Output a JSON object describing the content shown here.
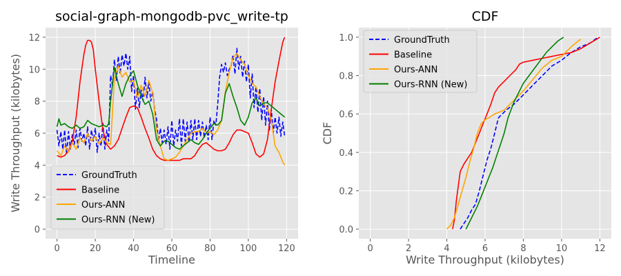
{
  "chart_data": [
    {
      "type": "line",
      "title": "social-graph-mongodb-pvc_write-tp",
      "xlabel": "Timeline",
      "ylabel": "Write Throughput (kilobytes)",
      "xlim": [
        -6,
        126
      ],
      "ylim": [
        -0.6,
        12.6
      ],
      "xticks": [
        0,
        20,
        40,
        60,
        80,
        100,
        120
      ],
      "yticks": [
        0,
        2,
        4,
        6,
        8,
        10,
        12
      ],
      "grid": true,
      "legend_position": "lower-left",
      "series": [
        {
          "name": "GroundTruth",
          "color": "#0000ff",
          "style": "dashed",
          "x": [
            0,
            1,
            2,
            3,
            4,
            5,
            6,
            7,
            8,
            9,
            10,
            11,
            12,
            13,
            14,
            15,
            16,
            17,
            18,
            19,
            20,
            21,
            22,
            23,
            24,
            25,
            26,
            27,
            28,
            29,
            30,
            31,
            32,
            33,
            34,
            35,
            36,
            37,
            38,
            39,
            40,
            41,
            42,
            43,
            44,
            45,
            46,
            47,
            48,
            49,
            50,
            51,
            52,
            53,
            54,
            55,
            56,
            57,
            58,
            59,
            60,
            61,
            62,
            63,
            64,
            65,
            66,
            67,
            68,
            69,
            70,
            71,
            72,
            73,
            74,
            75,
            76,
            77,
            78,
            79,
            80,
            81,
            82,
            83,
            84,
            85,
            86,
            87,
            88,
            89,
            90,
            91,
            92,
            93,
            94,
            95,
            96,
            97,
            98,
            99,
            100,
            101,
            102,
            103,
            104,
            105,
            106,
            107,
            108,
            109,
            110,
            111,
            112,
            113,
            114,
            115,
            116,
            117,
            118,
            119
          ],
          "y": [
            6.2,
            5.2,
            6.1,
            5.0,
            6.2,
            4.7,
            6.1,
            5.0,
            5.9,
            5.3,
            6.2,
            5.1,
            6.3,
            5.5,
            6.0,
            5.2,
            6.4,
            5.0,
            6.2,
            5.5,
            6.3,
            4.8,
            6.0,
            5.2,
            6.6,
            5.0,
            6.2,
            5.5,
            9.6,
            9.0,
            10.6,
            9.3,
            10.8,
            9.7,
            10.9,
            10.2,
            11.0,
            10.0,
            10.8,
            8.6,
            9.6,
            7.5,
            8.8,
            7.6,
            8.7,
            8.0,
            9.5,
            8.2,
            9.2,
            8.0,
            8.6,
            7.5,
            6.9,
            5.5,
            6.3,
            5.4,
            6.2,
            5.3,
            6.4,
            5.0,
            6.8,
            5.2,
            6.2,
            5.5,
            6.9,
            5.2,
            6.9,
            5.5,
            6.7,
            5.4,
            6.8,
            5.6,
            6.9,
            5.6,
            6.8,
            5.8,
            6.7,
            5.7,
            6.5,
            5.6,
            7.0,
            5.6,
            6.8,
            6.5,
            7.8,
            9.5,
            10.3,
            9.8,
            10.4,
            9.6,
            10.0,
            10.2,
            10.9,
            9.7,
            11.3,
            10.0,
            10.8,
            9.5,
            10.5,
            9.2,
            10.3,
            8.2,
            9.7,
            7.6,
            8.9,
            7.3,
            8.8,
            6.8,
            8.3,
            6.5,
            8.0,
            6.2,
            7.5,
            6.0,
            7.0,
            6.0,
            7.0,
            5.8,
            6.7,
            5.8
          ]
        },
        {
          "name": "Baseline",
          "color": "#ff0000",
          "style": "solid",
          "x": [
            0,
            2,
            4,
            6,
            8,
            10,
            12,
            14,
            15,
            16,
            17,
            18,
            19,
            20,
            22,
            24,
            26,
            28,
            30,
            32,
            34,
            36,
            38,
            40,
            42,
            44,
            46,
            48,
            50,
            52,
            54,
            56,
            58,
            60,
            62,
            64,
            66,
            68,
            70,
            72,
            74,
            76,
            78,
            80,
            82,
            84,
            86,
            88,
            90,
            92,
            94,
            96,
            98,
            100,
            102,
            104,
            106,
            108,
            110,
            112,
            114,
            116,
            118,
            119
          ],
          "y": [
            4.6,
            4.5,
            4.6,
            4.9,
            5.5,
            7.0,
            9.2,
            10.9,
            11.5,
            11.8,
            11.8,
            11.7,
            11.2,
            10.0,
            8.0,
            6.2,
            5.3,
            5.0,
            5.2,
            5.6,
            6.3,
            7.0,
            7.6,
            7.7,
            7.6,
            7.0,
            6.3,
            5.7,
            5.0,
            4.6,
            4.4,
            4.3,
            4.3,
            4.3,
            4.3,
            4.3,
            4.4,
            4.4,
            4.4,
            4.6,
            5.0,
            5.3,
            5.4,
            5.2,
            5.0,
            4.9,
            4.9,
            5.0,
            5.4,
            5.9,
            6.2,
            6.2,
            6.1,
            6.0,
            5.4,
            4.7,
            4.5,
            4.7,
            5.6,
            7.5,
            9.2,
            10.5,
            11.7,
            12.0
          ]
        },
        {
          "name": "Ours-ANN",
          "color": "#ffa500",
          "style": "solid",
          "x": [
            0,
            2,
            4,
            6,
            8,
            10,
            12,
            14,
            16,
            18,
            20,
            22,
            24,
            26,
            28,
            30,
            32,
            34,
            36,
            38,
            40,
            42,
            44,
            46,
            48,
            50,
            52,
            54,
            56,
            58,
            60,
            62,
            64,
            66,
            68,
            70,
            72,
            74,
            76,
            78,
            80,
            82,
            84,
            86,
            88,
            90,
            92,
            94,
            96,
            98,
            100,
            102,
            104,
            106,
            108,
            110,
            112,
            114,
            116,
            118,
            119
          ],
          "y": [
            4.9,
            4.6,
            5.2,
            4.8,
            5.4,
            5.0,
            5.7,
            5.4,
            6.0,
            5.5,
            5.8,
            5.3,
            5.7,
            5.4,
            5.3,
            9.4,
            10.2,
            9.5,
            9.8,
            9.2,
            9.3,
            8.2,
            9.0,
            8.3,
            9.3,
            8.5,
            6.2,
            5.2,
            4.4,
            4.3,
            4.4,
            4.5,
            4.8,
            5.2,
            5.6,
            6.0,
            6.1,
            6.1,
            6.3,
            6.0,
            6.1,
            5.9,
            6.2,
            6.8,
            8.6,
            9.8,
            10.7,
            11.0,
            10.6,
            10.3,
            9.6,
            9.1,
            8.9,
            8.3,
            7.8,
            7.6,
            6.8,
            5.2,
            4.8,
            4.2,
            4.0
          ]
        },
        {
          "name": "Ours-RNN (New)",
          "color": "#008000",
          "style": "solid",
          "x": [
            0,
            1,
            2,
            4,
            6,
            8,
            10,
            12,
            14,
            16,
            18,
            20,
            22,
            24,
            26,
            27,
            28,
            30,
            32,
            34,
            36,
            38,
            40,
            42,
            44,
            46,
            48,
            50,
            52,
            54,
            56,
            58,
            60,
            62,
            64,
            66,
            68,
            70,
            72,
            74,
            76,
            78,
            80,
            82,
            84,
            86,
            88,
            90,
            92,
            94,
            96,
            98,
            100,
            102,
            104,
            106,
            108,
            110,
            112,
            114,
            116,
            118,
            119
          ],
          "y": [
            6.4,
            6.9,
            6.5,
            6.6,
            6.4,
            6.3,
            6.5,
            6.3,
            6.4,
            6.8,
            6.6,
            6.5,
            6.4,
            6.5,
            6.4,
            6.6,
            8.0,
            10.1,
            9.1,
            8.3,
            9.1,
            9.6,
            9.9,
            9.0,
            8.3,
            7.8,
            8.0,
            7.2,
            5.6,
            5.2,
            5.5,
            5.5,
            5.3,
            5.1,
            5.0,
            5.2,
            5.4,
            5.6,
            5.4,
            5.3,
            5.6,
            6.0,
            6.3,
            6.6,
            6.5,
            6.8,
            8.5,
            9.1,
            8.3,
            7.6,
            6.8,
            6.5,
            7.0,
            7.9,
            8.2,
            7.7,
            7.9,
            7.9,
            7.7,
            7.5,
            7.3,
            7.1,
            7.0
          ]
        }
      ]
    },
    {
      "type": "line",
      "title": "CDF",
      "xlabel": "Write Throughput (kilobytes)",
      "ylabel": "CDF",
      "xlim": [
        -0.6,
        12.6
      ],
      "ylim": [
        -0.05,
        1.05
      ],
      "xticks": [
        0,
        2,
        4,
        6,
        8,
        10,
        12
      ],
      "yticks": [
        0.0,
        0.2,
        0.4,
        0.6,
        0.8,
        1.0
      ],
      "ytick_labels": [
        "0.0",
        "0.2",
        "0.4",
        "0.6",
        "0.8",
        "1.0"
      ],
      "grid": true,
      "legend_position": "upper-left",
      "series": [
        {
          "name": "GroundTruth",
          "color": "#0000ff",
          "style": "dashed",
          "x": [
            4.7,
            4.9,
            5.1,
            5.3,
            5.5,
            5.7,
            5.9,
            6.1,
            6.3,
            6.5,
            6.7,
            6.9,
            7.1,
            7.5,
            8.0,
            8.5,
            9.0,
            9.5,
            10.0,
            10.5,
            11.0,
            11.5,
            11.9
          ],
          "y": [
            0.0,
            0.03,
            0.06,
            0.1,
            0.13,
            0.2,
            0.28,
            0.36,
            0.42,
            0.5,
            0.58,
            0.6,
            0.62,
            0.65,
            0.7,
            0.75,
            0.8,
            0.85,
            0.88,
            0.92,
            0.95,
            0.97,
            1.0
          ]
        },
        {
          "name": "Baseline",
          "color": "#ff0000",
          "style": "solid",
          "x": [
            4.3,
            4.4,
            4.5,
            4.7,
            4.9,
            5.1,
            5.3,
            5.5,
            5.7,
            5.9,
            6.1,
            6.3,
            6.5,
            6.7,
            7.0,
            7.3,
            7.6,
            7.8,
            8.0,
            8.5,
            9.0,
            9.5,
            10.0,
            10.5,
            11.0,
            11.5,
            12.0
          ],
          "y": [
            0.0,
            0.05,
            0.15,
            0.3,
            0.34,
            0.37,
            0.4,
            0.45,
            0.5,
            0.55,
            0.6,
            0.65,
            0.71,
            0.74,
            0.77,
            0.8,
            0.83,
            0.86,
            0.87,
            0.88,
            0.89,
            0.9,
            0.91,
            0.92,
            0.94,
            0.97,
            1.0
          ]
        },
        {
          "name": "Ours-ANN",
          "color": "#ffa500",
          "style": "solid",
          "x": [
            4.0,
            4.2,
            4.4,
            4.6,
            4.8,
            5.0,
            5.2,
            5.4,
            5.6,
            5.8,
            6.0,
            6.2,
            6.5,
            7.0,
            7.5,
            8.0,
            8.5,
            9.0,
            9.5,
            10.0,
            10.5,
            11.0
          ],
          "y": [
            0.0,
            0.02,
            0.06,
            0.13,
            0.2,
            0.27,
            0.35,
            0.42,
            0.5,
            0.55,
            0.57,
            0.58,
            0.6,
            0.62,
            0.67,
            0.72,
            0.78,
            0.84,
            0.88,
            0.9,
            0.95,
            0.99
          ]
        },
        {
          "name": "Ours-RNN (New)",
          "color": "#008000",
          "style": "solid",
          "x": [
            5.0,
            5.2,
            5.4,
            5.6,
            5.8,
            6.0,
            6.2,
            6.4,
            6.6,
            6.8,
            7.0,
            7.2,
            7.5,
            7.8,
            8.0,
            8.3,
            8.6,
            8.9,
            9.2,
            9.5,
            9.8,
            10.1
          ],
          "y": [
            0.0,
            0.04,
            0.08,
            0.12,
            0.17,
            0.22,
            0.27,
            0.32,
            0.38,
            0.44,
            0.5,
            0.58,
            0.66,
            0.72,
            0.76,
            0.8,
            0.84,
            0.88,
            0.92,
            0.95,
            0.98,
            1.0
          ]
        }
      ]
    }
  ]
}
